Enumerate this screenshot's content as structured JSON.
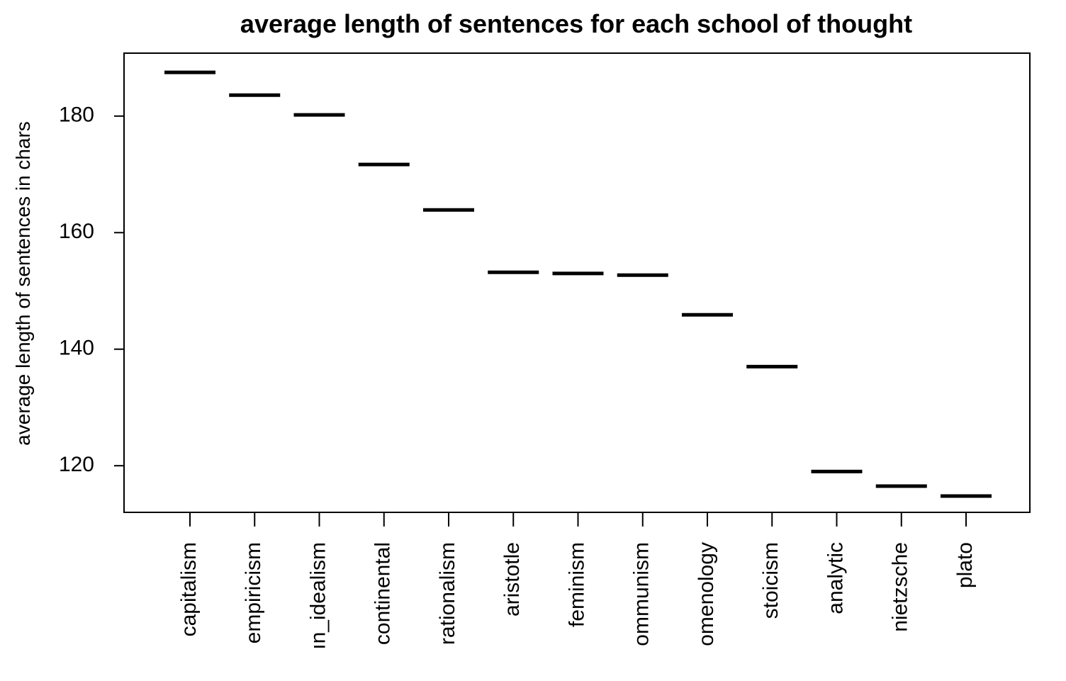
{
  "chart_data": {
    "type": "bar",
    "title": "average length of sentences for each school of thought",
    "xlabel": "",
    "ylabel": "average length of sentences in chars",
    "categories": [
      "capitalism",
      "empiricism",
      "german_idealism",
      "continental",
      "rationalism",
      "aristotle",
      "feminism",
      "communism",
      "phenomenology",
      "stoicism",
      "analytic",
      "nietzsche",
      "plato"
    ],
    "tick_labels_visible": [
      "capitalism",
      "empiricism",
      "ın_idealism",
      "continental",
      "rationalism",
      "aristotle",
      "feminism",
      "ommunism",
      "omenology",
      "stoicism",
      "analytic",
      "nietzsche",
      "plato"
    ],
    "values": [
      187.5,
      183.6,
      180.2,
      171.7,
      163.9,
      153.2,
      153.0,
      152.7,
      145.9,
      137.0,
      119.0,
      116.5,
      114.8
    ],
    "ylim": [
      112,
      190.8
    ],
    "yticks": [
      120,
      140,
      160,
      180
    ],
    "grid": false,
    "legend": "none"
  }
}
